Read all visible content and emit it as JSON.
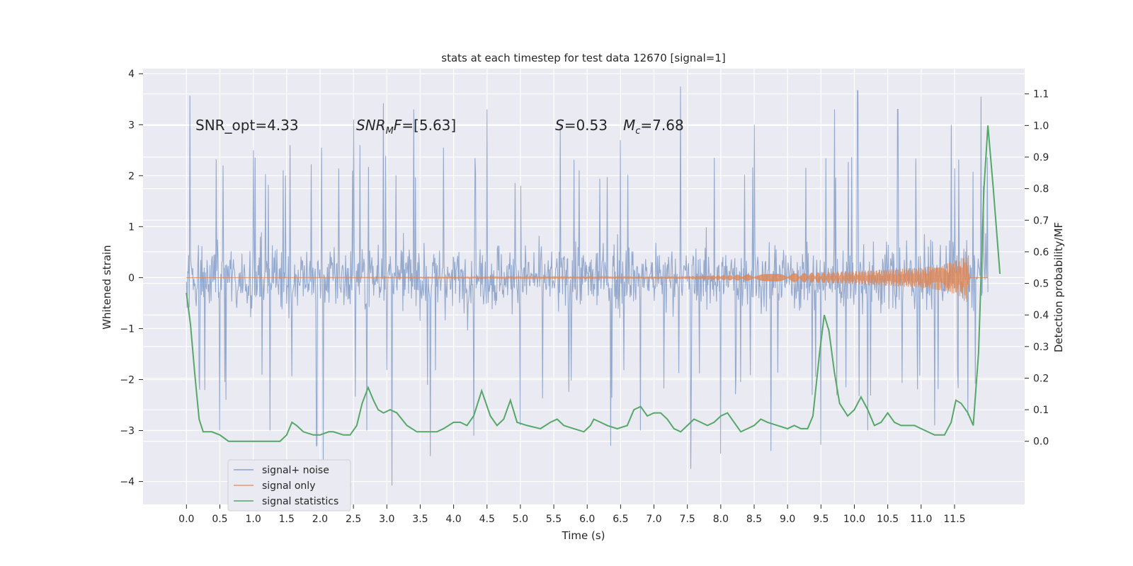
{
  "chart_data": {
    "type": "line",
    "title": "stats at each timestep for test data 12670 [signal=1]",
    "xlabel": "Time (s)",
    "ylabel_left": "Whitened strain",
    "ylabel_right": "Detection probability/MF",
    "xlim": [
      -0.65,
      12.55
    ],
    "ylim_left": [
      -4.45,
      4.1
    ],
    "ylim_right": [
      -0.2,
      1.18
    ],
    "x_ticks": [
      "0.0",
      "0.5",
      "1.0",
      "1.5",
      "2.0",
      "2.5",
      "3.0",
      "3.5",
      "4.0",
      "4.5",
      "5.0",
      "5.5",
      "6.0",
      "6.5",
      "7.0",
      "7.5",
      "8.0",
      "8.5",
      "9.0",
      "9.5",
      "10.0",
      "10.5",
      "11.0",
      "11.5"
    ],
    "y_ticks_left": [
      "4",
      "3",
      "2",
      "1",
      "0",
      "−1",
      "−2",
      "−3",
      "−4"
    ],
    "y_ticks_right": [
      "1.1",
      "1.0",
      "0.9",
      "0.8",
      "0.7",
      "0.6",
      "0.5",
      "0.4",
      "0.3",
      "0.2",
      "0.1",
      "0.0"
    ],
    "grid": true,
    "legend_position": "lower-left",
    "annotations": {
      "snr_opt": "SNR_opt=4.33",
      "snr_mf_main": "SNR",
      "snr_mf_sub": "M",
      "snr_mf_rest_italic": "F",
      "snr_mf_value": "=[5.63]",
      "s_symbol": "S",
      "s_value": "=0.53",
      "mc_main": "M",
      "mc_sub": "c",
      "mc_value": "=7.68"
    },
    "series": [
      {
        "name": "signal+ noise",
        "axis": "left",
        "color": "#4c72b0",
        "style": "dense noise, amplitude envelope ~±1.6 with spikes",
        "x_range": [
          0.0,
          12.0
        ],
        "spike_peaks": [
          [
            0.05,
            3.57
          ],
          [
            0.55,
            2.2
          ],
          [
            1.0,
            2.5
          ],
          [
            1.55,
            2.6
          ],
          [
            2.02,
            2.55
          ],
          [
            2.5,
            3.1
          ],
          [
            2.6,
            2.6
          ],
          [
            2.95,
            3.42
          ],
          [
            3.4,
            3.3
          ],
          [
            3.85,
            2.55
          ],
          [
            4.5,
            3.3
          ],
          [
            5.6,
            3.0
          ],
          [
            6.5,
            2.7
          ],
          [
            7.4,
            3.75
          ],
          [
            8.5,
            3.0
          ],
          [
            9.7,
            3.3
          ],
          [
            10.05,
            3.67
          ],
          [
            10.65,
            3.3
          ],
          [
            11.45,
            3.0
          ],
          [
            11.9,
            3.55
          ]
        ],
        "spike_troughs": [
          [
            0.2,
            -2.2
          ],
          [
            0.5,
            -3.0
          ],
          [
            1.25,
            -3.0
          ],
          [
            1.95,
            -3.3
          ],
          [
            2.05,
            -3.6
          ],
          [
            2.7,
            -3.0
          ],
          [
            3.08,
            -4.08
          ],
          [
            3.65,
            -3.5
          ],
          [
            4.3,
            -3.1
          ],
          [
            5.0,
            -2.9
          ],
          [
            6.35,
            -3.3
          ],
          [
            6.8,
            -3.0
          ],
          [
            7.55,
            -3.75
          ],
          [
            8.0,
            -3.45
          ],
          [
            8.75,
            -3.4
          ],
          [
            9.5,
            -3.28
          ],
          [
            10.2,
            -3.0
          ],
          [
            11.2,
            -2.9
          ],
          [
            11.7,
            -2.7
          ]
        ]
      },
      {
        "name": "signal only",
        "axis": "left",
        "color": "#dd8452",
        "style": "chirp; flat near 0 until ~7.3 s, growing envelope",
        "envelope": [
          [
            0.0,
            0.0
          ],
          [
            7.3,
            0.02
          ],
          [
            8.0,
            0.05
          ],
          [
            9.0,
            0.08
          ],
          [
            10.0,
            0.13
          ],
          [
            10.5,
            0.16
          ],
          [
            11.0,
            0.2
          ],
          [
            11.3,
            0.25
          ],
          [
            11.5,
            0.32
          ],
          [
            11.62,
            0.4
          ],
          [
            11.68,
            0.55
          ],
          [
            11.73,
            0.0
          ],
          [
            12.0,
            0.0
          ]
        ]
      },
      {
        "name": "signal statistics",
        "axis": "right",
        "color": "#55a868",
        "points": [
          [
            0.0,
            0.47
          ],
          [
            0.06,
            0.37
          ],
          [
            0.13,
            0.2
          ],
          [
            0.19,
            0.07
          ],
          [
            0.25,
            0.03
          ],
          [
            0.38,
            0.03
          ],
          [
            0.5,
            0.02
          ],
          [
            0.63,
            0.0
          ],
          [
            0.75,
            0.0
          ],
          [
            1.0,
            0.0
          ],
          [
            1.25,
            0.0
          ],
          [
            1.4,
            0.0
          ],
          [
            1.5,
            0.02
          ],
          [
            1.58,
            0.06
          ],
          [
            1.65,
            0.05
          ],
          [
            1.75,
            0.03
          ],
          [
            1.9,
            0.02
          ],
          [
            2.0,
            0.02
          ],
          [
            2.13,
            0.03
          ],
          [
            2.2,
            0.03
          ],
          [
            2.35,
            0.02
          ],
          [
            2.45,
            0.02
          ],
          [
            2.55,
            0.05
          ],
          [
            2.63,
            0.12
          ],
          [
            2.72,
            0.17
          ],
          [
            2.8,
            0.13
          ],
          [
            2.87,
            0.1
          ],
          [
            2.95,
            0.09
          ],
          [
            3.05,
            0.1
          ],
          [
            3.15,
            0.09
          ],
          [
            3.3,
            0.05
          ],
          [
            3.45,
            0.03
          ],
          [
            3.6,
            0.03
          ],
          [
            3.75,
            0.03
          ],
          [
            3.85,
            0.04
          ],
          [
            4.0,
            0.06
          ],
          [
            4.1,
            0.06
          ],
          [
            4.2,
            0.05
          ],
          [
            4.3,
            0.08
          ],
          [
            4.42,
            0.16
          ],
          [
            4.55,
            0.08
          ],
          [
            4.65,
            0.05
          ],
          [
            4.75,
            0.07
          ],
          [
            4.85,
            0.13
          ],
          [
            4.95,
            0.06
          ],
          [
            5.1,
            0.05
          ],
          [
            5.3,
            0.04
          ],
          [
            5.45,
            0.06
          ],
          [
            5.55,
            0.07
          ],
          [
            5.65,
            0.05
          ],
          [
            5.8,
            0.04
          ],
          [
            5.95,
            0.03
          ],
          [
            6.05,
            0.05
          ],
          [
            6.1,
            0.07
          ],
          [
            6.2,
            0.06
          ],
          [
            6.3,
            0.05
          ],
          [
            6.45,
            0.04
          ],
          [
            6.6,
            0.05
          ],
          [
            6.7,
            0.1
          ],
          [
            6.8,
            0.11
          ],
          [
            6.9,
            0.08
          ],
          [
            7.0,
            0.09
          ],
          [
            7.1,
            0.09
          ],
          [
            7.2,
            0.07
          ],
          [
            7.3,
            0.04
          ],
          [
            7.4,
            0.03
          ],
          [
            7.5,
            0.05
          ],
          [
            7.6,
            0.07
          ],
          [
            7.7,
            0.06
          ],
          [
            7.8,
            0.05
          ],
          [
            7.9,
            0.06
          ],
          [
            8.0,
            0.08
          ],
          [
            8.1,
            0.09
          ],
          [
            8.2,
            0.06
          ],
          [
            8.3,
            0.03
          ],
          [
            8.4,
            0.04
          ],
          [
            8.5,
            0.05
          ],
          [
            8.6,
            0.07
          ],
          [
            8.7,
            0.06
          ],
          [
            8.85,
            0.05
          ],
          [
            9.0,
            0.04
          ],
          [
            9.1,
            0.05
          ],
          [
            9.2,
            0.04
          ],
          [
            9.3,
            0.04
          ],
          [
            9.38,
            0.08
          ],
          [
            9.48,
            0.28
          ],
          [
            9.55,
            0.4
          ],
          [
            9.62,
            0.35
          ],
          [
            9.7,
            0.22
          ],
          [
            9.78,
            0.12
          ],
          [
            9.9,
            0.08
          ],
          [
            10.0,
            0.1
          ],
          [
            10.1,
            0.14
          ],
          [
            10.2,
            0.1
          ],
          [
            10.3,
            0.05
          ],
          [
            10.4,
            0.06
          ],
          [
            10.5,
            0.09
          ],
          [
            10.6,
            0.06
          ],
          [
            10.7,
            0.05
          ],
          [
            10.8,
            0.05
          ],
          [
            10.9,
            0.05
          ],
          [
            11.0,
            0.04
          ],
          [
            11.2,
            0.02
          ],
          [
            11.35,
            0.02
          ],
          [
            11.45,
            0.06
          ],
          [
            11.52,
            0.13
          ],
          [
            11.6,
            0.12
          ],
          [
            11.7,
            0.09
          ],
          [
            11.78,
            0.05
          ],
          [
            11.86,
            0.28
          ],
          [
            11.94,
            0.8
          ],
          [
            12.0,
            1.0
          ],
          [
            12.08,
            0.8
          ],
          [
            12.18,
            0.53
          ]
        ]
      }
    ]
  }
}
